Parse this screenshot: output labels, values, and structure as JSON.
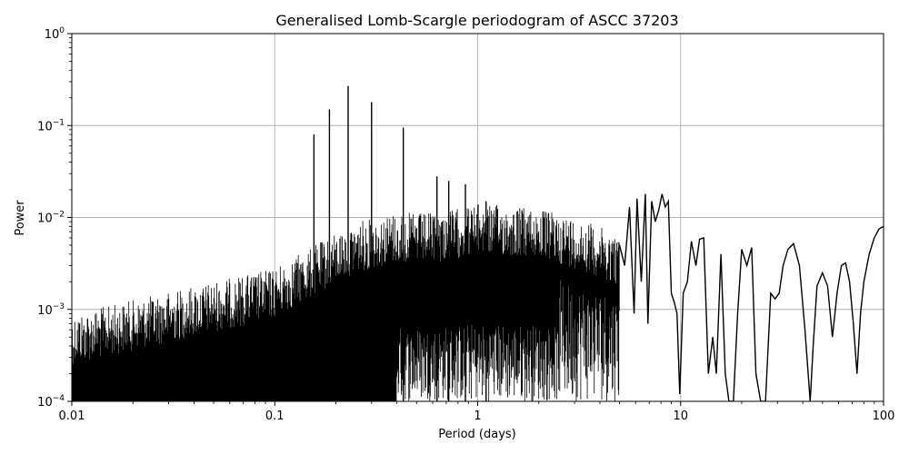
{
  "chart_data": {
    "type": "line",
    "title": "Generalised Lomb-Scargle periodogram of ASCC 37203",
    "xlabel": "Period (days)",
    "ylabel": "Power",
    "xscale": "log",
    "yscale": "log",
    "xlim": [
      0.01,
      100
    ],
    "ylim": [
      0.0001,
      1
    ],
    "grid": true,
    "line_color": "#000000",
    "x_ticks": [
      {
        "value": 0.01,
        "label": "0.01"
      },
      {
        "value": 0.1,
        "label": "0.1"
      },
      {
        "value": 1,
        "label": "1"
      },
      {
        "value": 10,
        "label": "10"
      },
      {
        "value": 100,
        "label": "100"
      }
    ],
    "y_ticks": [
      {
        "value": 0.0001,
        "base": "10",
        "exp": "−4"
      },
      {
        "value": 0.001,
        "base": "10",
        "exp": "−3"
      },
      {
        "value": 0.01,
        "base": "10",
        "exp": "−2"
      },
      {
        "value": 0.1,
        "base": "10",
        "exp": "−1"
      },
      {
        "value": 1,
        "base": "10",
        "exp": "0"
      }
    ],
    "peaks": [
      {
        "period": 0.156,
        "power": 0.08
      },
      {
        "period": 0.186,
        "power": 0.15
      },
      {
        "period": 0.23,
        "power": 0.27
      },
      {
        "period": 0.3,
        "power": 0.18
      },
      {
        "period": 0.43,
        "power": 0.095
      },
      {
        "period": 0.63,
        "power": 0.028
      },
      {
        "period": 0.72,
        "power": 0.025
      },
      {
        "period": 0.87,
        "power": 0.023
      },
      {
        "period": 1.1,
        "power": 0.015
      }
    ],
    "series": [
      {
        "x": [
          5.0,
          5.3,
          5.6,
          5.9,
          6.1,
          6.4,
          6.7,
          6.9,
          7.2,
          7.5,
          7.8,
          8.1,
          8.4,
          8.7,
          9.0,
          9.3,
          9.6,
          9.9,
          10.3,
          10.8,
          11.3,
          11.9,
          12.4,
          13.0,
          13.7,
          14.4,
          15.0,
          15.8,
          16.6,
          17.3,
          18.2,
          19.1,
          20.0,
          21.2,
          22.4,
          23.5,
          24.8,
          26.2,
          27.8,
          29.2,
          30.6,
          32.0,
          33.8,
          36.0,
          38.5,
          41.0,
          43.5,
          45.0,
          47.0,
          50.0,
          53.0,
          56.0,
          59.0,
          62.0,
          65.0,
          68.0,
          71.0,
          74.0,
          77.0,
          80.0,
          85.0,
          90.0,
          95.0,
          100.0
        ],
        "y": [
          0.005,
          0.003,
          0.013,
          0.0009,
          0.016,
          0.002,
          0.018,
          0.0007,
          0.015,
          0.009,
          0.012,
          0.018,
          0.013,
          0.015,
          0.0015,
          0.0012,
          0.0009,
          0.00012,
          0.0015,
          0.002,
          0.0055,
          0.003,
          0.0058,
          0.006,
          0.0002,
          0.0005,
          0.0002,
          0.004,
          0.0002,
          0.0001,
          0.0001,
          0.0009,
          0.0045,
          0.003,
          0.0047,
          0.0002,
          0.0001,
          0.0001,
          0.0015,
          0.0013,
          0.0015,
          0.003,
          0.0045,
          0.0052,
          0.003,
          0.0006,
          0.0001,
          0.0004,
          0.0018,
          0.0025,
          0.0018,
          0.0005,
          0.0015,
          0.003,
          0.0032,
          0.002,
          0.0007,
          0.0002,
          0.0009,
          0.002,
          0.004,
          0.006,
          0.0075,
          0.008
        ]
      }
    ]
  }
}
